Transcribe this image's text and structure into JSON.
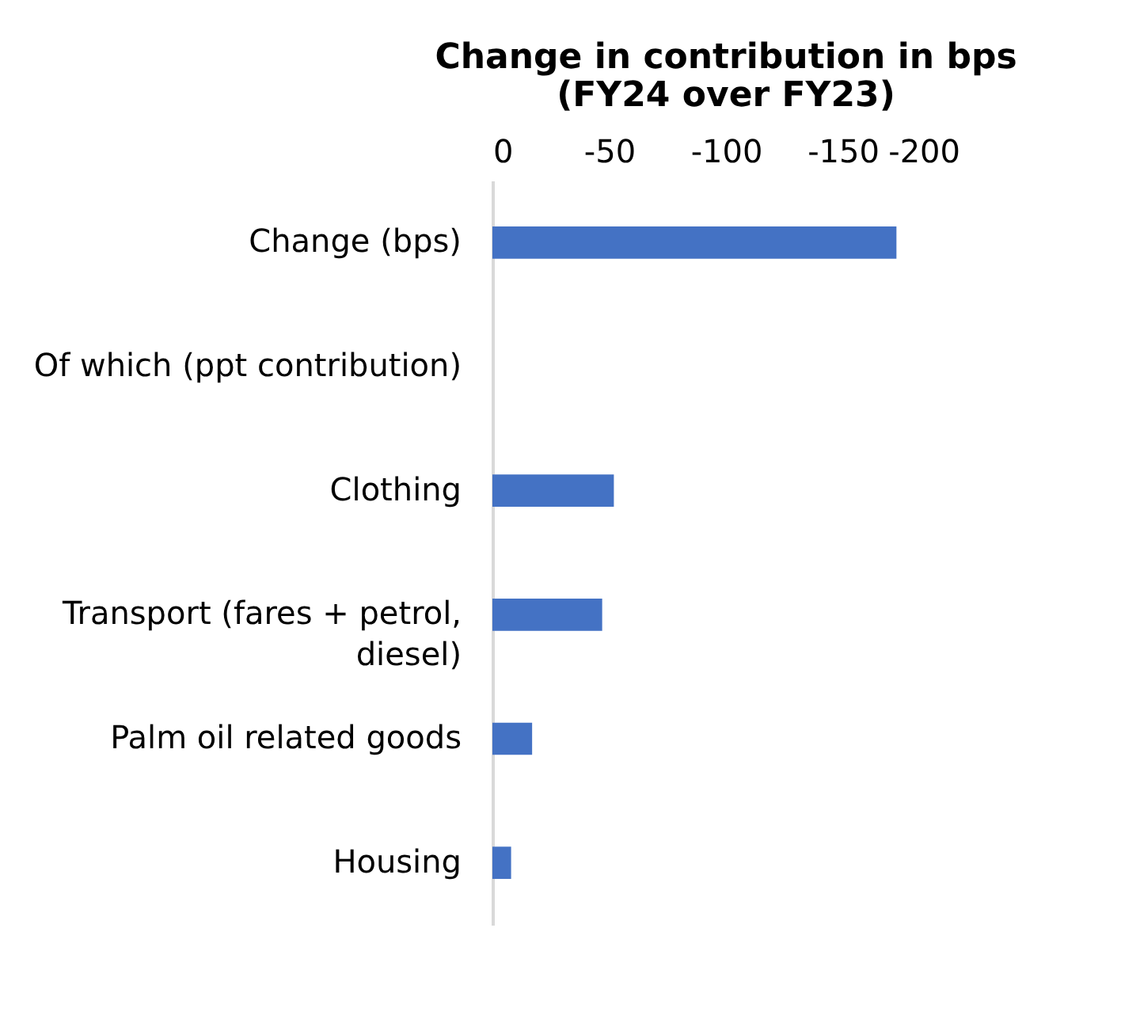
{
  "chart_data": {
    "type": "bar",
    "orientation": "horizontal",
    "title": "Change in contribution in bps\n(FY24 over FY23)",
    "categories": [
      "Change (bps)",
      "Of which (ppt contribution)",
      "Clothing",
      "Transport (fares + petrol, diesel)",
      "Palm oil related goods",
      "Housing"
    ],
    "values": [
      -173,
      null,
      -52,
      -47,
      -17,
      -8
    ],
    "color": "#4472c4",
    "xlim": [
      0,
      -200
    ],
    "xticks": [
      0,
      -50,
      -100,
      -150,
      -200
    ],
    "grid": false,
    "legend": false
  }
}
